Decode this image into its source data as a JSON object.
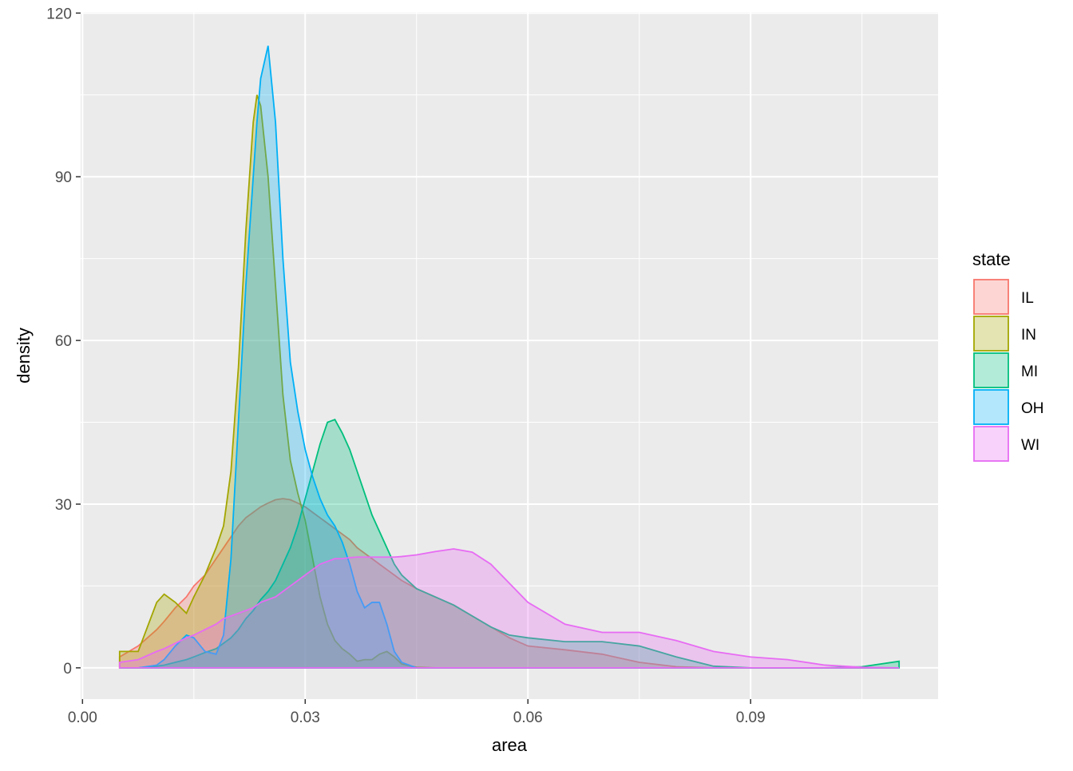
{
  "chart_data": {
    "type": "density",
    "x_label": "area",
    "y_label": "density",
    "legend_title": "state",
    "x": [
      0.005,
      0.0075,
      0.01,
      0.011,
      0.0125,
      0.014,
      0.015,
      0.0165,
      0.018,
      0.019,
      0.02,
      0.021,
      0.022,
      0.023,
      0.0235,
      0.024,
      0.025,
      0.026,
      0.027,
      0.028,
      0.029,
      0.03,
      0.031,
      0.032,
      0.033,
      0.034,
      0.035,
      0.036,
      0.037,
      0.038,
      0.039,
      0.04,
      0.041,
      0.042,
      0.043,
      0.045,
      0.0475,
      0.05,
      0.0525,
      0.055,
      0.0575,
      0.06,
      0.065,
      0.07,
      0.075,
      0.08,
      0.085,
      0.09,
      0.095,
      0.1,
      0.105,
      0.11
    ],
    "series": [
      {
        "name": "IL",
        "color": "#F8766D",
        "values": [
          2,
          4,
          7,
          8.5,
          11,
          13,
          15,
          17,
          20,
          22,
          24,
          26,
          27.5,
          28.5,
          29,
          29.5,
          30.2,
          30.8,
          31,
          30.8,
          30.2,
          29.5,
          28.5,
          27.5,
          26.5,
          25.5,
          24.5,
          23.5,
          22,
          21,
          20,
          19,
          18,
          17,
          16,
          14.5,
          13,
          11.5,
          9.5,
          7.5,
          5.5,
          4,
          3.3,
          2.5,
          1,
          0.2,
          0,
          0,
          0,
          0,
          0,
          0
        ]
      },
      {
        "name": "IN",
        "color": "#A3A500",
        "values": [
          3,
          3,
          12,
          13.5,
          12,
          10,
          13,
          17,
          22,
          26,
          36,
          55,
          80,
          100,
          105,
          103,
          90,
          70,
          50,
          38,
          32,
          27,
          20,
          13,
          8,
          5,
          3.5,
          2.5,
          1.2,
          1.5,
          1.5,
          2.5,
          3,
          2,
          0.7,
          0.1,
          0,
          0,
          0,
          0,
          0,
          0,
          0,
          0,
          0,
          0,
          0,
          0,
          0,
          0,
          0,
          0
        ]
      },
      {
        "name": "MI",
        "color": "#00BF7D",
        "values": [
          0,
          0,
          0.3,
          0.5,
          1,
          1.5,
          2,
          2.8,
          3.5,
          4.5,
          5.5,
          7,
          9,
          10.5,
          11.5,
          12.5,
          14,
          16,
          19,
          22,
          26,
          31,
          36,
          41,
          45,
          45.5,
          43,
          40,
          36,
          32,
          28,
          25,
          22,
          19,
          17,
          14.5,
          13,
          11.5,
          9.5,
          7.5,
          6,
          5.5,
          4.8,
          4.8,
          4,
          2,
          0.3,
          0,
          0,
          0,
          0.2,
          1.2
        ]
      },
      {
        "name": "OH",
        "color": "#00B0F6",
        "values": [
          0,
          0,
          0.5,
          1.5,
          4,
          6,
          5.5,
          3,
          2.5,
          6,
          20,
          45,
          70,
          90,
          100,
          108,
          114,
          100,
          75,
          56,
          47,
          40,
          35,
          31,
          28,
          26,
          23,
          19,
          14,
          11,
          12,
          12,
          8,
          3,
          1,
          0,
          0,
          0,
          0,
          0,
          0,
          0,
          0,
          0,
          0,
          0,
          0,
          0,
          0,
          0,
          0,
          0
        ]
      },
      {
        "name": "WI",
        "color": "#E76BF3",
        "values": [
          1,
          1.5,
          3,
          3.5,
          4.5,
          5.5,
          6,
          7,
          8,
          9,
          9.5,
          10,
          10.5,
          11,
          11.5,
          12,
          12.5,
          13,
          14,
          15,
          16,
          17,
          18,
          19,
          19.5,
          20,
          20,
          20.2,
          20.3,
          20.3,
          20.3,
          20.3,
          20.3,
          20.3,
          20.4,
          20.7,
          21.3,
          21.8,
          21.2,
          19,
          15.5,
          12,
          8,
          6.5,
          6.5,
          5,
          3,
          2,
          1.5,
          0.5,
          0.1,
          0
        ]
      }
    ],
    "xlim": [
      -0.00025,
      0.11525
    ],
    "ylim": [
      -5.73,
      120.2
    ],
    "xticks": [
      {
        "value": 0,
        "label": "0.00"
      },
      0.03,
      0.06,
      0.09
    ],
    "yticks": [
      0,
      30,
      60,
      90,
      120
    ],
    "grid": true,
    "legend": "right"
  }
}
